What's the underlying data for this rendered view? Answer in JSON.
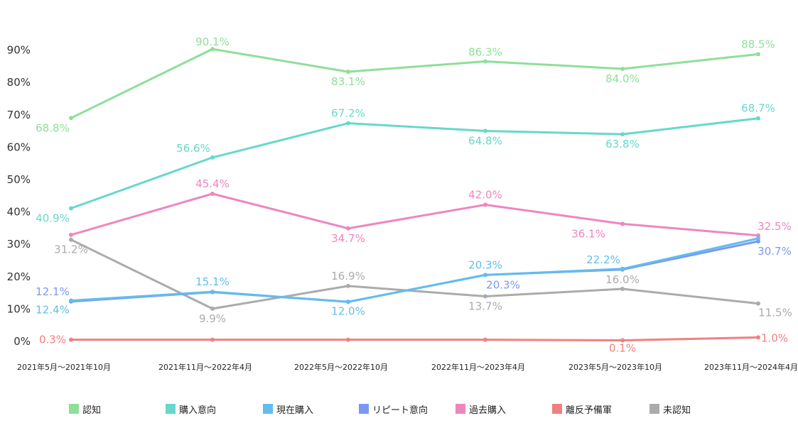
{
  "chart_data": {
    "type": "line",
    "title": "",
    "xlabel": "",
    "ylabel": "",
    "ylim": [
      0,
      90
    ],
    "y_ticks": [
      "0%",
      "10%",
      "20%",
      "30%",
      "40%",
      "50%",
      "60%",
      "70%",
      "80%",
      "90%"
    ],
    "categories": [
      "2021年5月～2021年10月",
      "2021年11月～2022年4月",
      "2022年5月～2022年10月",
      "2022年11月～2023年4月",
      "2023年5月～2023年10月",
      "2023年11月～2024年4月"
    ],
    "grid": false,
    "legend_position": "bottom",
    "series": [
      {
        "name": "認知",
        "color": "#8EDF98",
        "values": [
          68.8,
          90.1,
          83.1,
          86.3,
          84.0,
          88.5
        ],
        "labels": [
          "68.8%",
          "90.1%",
          "83.1%",
          "86.3%",
          "84.0%",
          "88.5%"
        ]
      },
      {
        "name": "購入意向",
        "color": "#67D8CB",
        "values": [
          40.9,
          56.6,
          67.2,
          64.8,
          63.8,
          68.7
        ],
        "labels": [
          "40.9%",
          "56.6%",
          "67.2%",
          "64.8%",
          "63.8%",
          "68.7%"
        ]
      },
      {
        "name": "現在購入",
        "color": "#62BDED",
        "values": [
          12.4,
          15.1,
          12.0,
          20.3,
          22.2,
          31.6
        ],
        "labels": [
          "12.4%",
          "15.1%",
          "12.0%",
          "20.3%",
          "22.2%",
          ""
        ]
      },
      {
        "name": "リピート意向",
        "color": "#7A98F2",
        "values": [
          12.1,
          15.0,
          12.0,
          20.3,
          22.0,
          30.7
        ],
        "labels": [
          "12.1%",
          "",
          "",
          "20.3%",
          "",
          "30.7%"
        ]
      },
      {
        "name": "過去購入",
        "color": "#EE86BE",
        "values": [
          32.7,
          45.4,
          34.7,
          42.0,
          36.1,
          32.5
        ],
        "labels": [
          "",
          "45.4%",
          "34.7%",
          "42.0%",
          "36.1%",
          "32.5%"
        ]
      },
      {
        "name": "離反予備軍",
        "color": "#F08080",
        "values": [
          0.3,
          0.3,
          0.3,
          0.3,
          0.1,
          1.0
        ],
        "labels": [
          "0.3%",
          "",
          "",
          "",
          "0.1%",
          "1.0%"
        ]
      },
      {
        "name": "未認知",
        "color": "#ABABAB",
        "values": [
          31.2,
          9.9,
          16.9,
          13.7,
          16.0,
          11.5
        ],
        "labels": [
          "31.2%",
          "9.9%",
          "16.9%",
          "13.7%",
          "16.0%",
          "11.5%"
        ]
      }
    ]
  }
}
